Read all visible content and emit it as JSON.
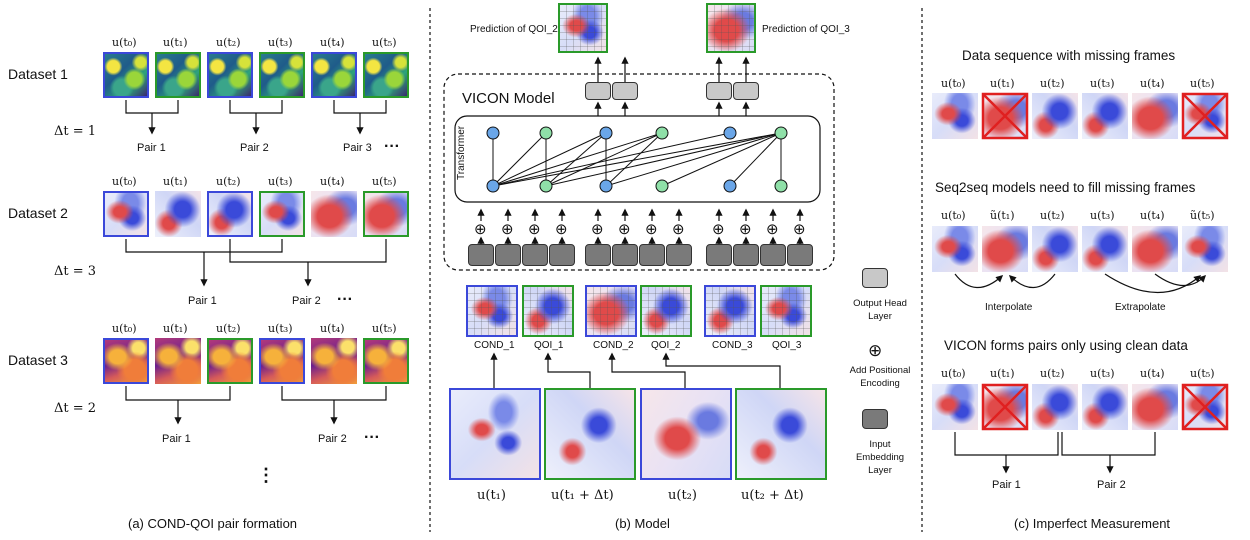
{
  "panel_a": {
    "datasets": [
      {
        "label": "Dataset 1",
        "delta": "Δt = 1",
        "pairs": [
          "Pair 1",
          "Pair 2",
          "Pair 3"
        ]
      },
      {
        "label": "Dataset 2",
        "delta": "Δt = 3",
        "pairs": [
          "Pair 1",
          "Pair 2"
        ]
      },
      {
        "label": "Dataset 3",
        "delta": "Δt = 2",
        "pairs": [
          "Pair 1",
          "Pair 2"
        ]
      }
    ],
    "frame_labels": [
      "u(t₀)",
      "u(t₁)",
      "u(t₂)",
      "u(t₃)",
      "u(t₄)",
      "u(t₅)"
    ],
    "ellipsis": "···",
    "vdots": "⋮",
    "caption": "(a) COND-QOI pair formation"
  },
  "panel_b": {
    "pred_left": "Prediction of QOI_2",
    "pred_right": "Prediction of QOI_3",
    "model_title": "VICON Model",
    "transformer": "Transformer",
    "patch_labels": [
      "COND_1",
      "QOI_1",
      "COND_2",
      "QOI_2",
      "COND_3",
      "QOI_3"
    ],
    "input_labels": [
      "u(t₁)",
      "u(t₁ + Δt)",
      "u(t₂)",
      "u(t₂ + Δt)"
    ],
    "caption": "(b) Model",
    "legend": {
      "output_head": "Output Head Layer",
      "pos_enc": "Add Positional Encoding",
      "input_emb": "Input Embedding Layer",
      "oplus": "⊕"
    }
  },
  "panel_c": {
    "title1": "Data sequence with missing frames",
    "title2": "Seq2seq models need to fill missing frames",
    "title3": "VICON forms pairs only using clean data",
    "row1_labels": [
      "u(t₀)",
      "u(t₁)",
      "u(t₂)",
      "u(t₃)",
      "u(t₄)",
      "u(t₅)"
    ],
    "row2_labels": [
      "u(t₀)",
      "ũ(t₁)",
      "u(t₂)",
      "u(t₃)",
      "u(t₄)",
      "ũ(t₅)"
    ],
    "interpolate": "Interpolate",
    "extrapolate": "Extrapolate",
    "pairs": [
      "Pair 1",
      "Pair 2"
    ],
    "caption": "(c) Imperfect Measurement"
  },
  "colors": {
    "cond_border": "#3b48d9",
    "qoi_border": "#2a9a2a",
    "missing": "#e02020",
    "node_blue": "#6aa6e8",
    "node_green": "#8fe0a8"
  }
}
